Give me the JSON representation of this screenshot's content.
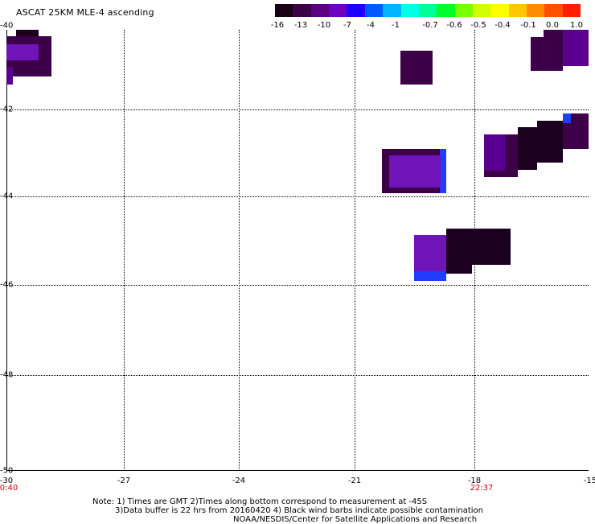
{
  "title": "ASCAT 25KM MLE-4 ascending",
  "colorbar": {
    "labels": [
      "-16",
      "-13",
      "-10",
      "-7",
      "-4",
      "-1",
      "-0.7",
      "-0.6",
      "-0.5",
      "-0.4",
      "-0.1",
      "0.0",
      "1.0"
    ],
    "colors": [
      "#1a0014",
      "#3c0046",
      "#5a0080",
      "#7000c0",
      "#1e00ff",
      "#005aff",
      "#00b4ff",
      "#00ffe6",
      "#00ff96",
      "#00ff2a",
      "#78ff00",
      "#d2ff00",
      "#ffff00",
      "#ffc800",
      "#ff8c00",
      "#ff5000",
      "#ff1e00"
    ]
  },
  "map": {
    "lon_labels": [
      "-30",
      "-27",
      "-24",
      "-21",
      "-18",
      "-15"
    ],
    "lat_labels": [
      "-40",
      "-42",
      "-44",
      "-46",
      "-48",
      "-50"
    ],
    "time_labels": {
      "left": "0:40",
      "right": "22:37"
    }
  },
  "colors": {
    "deep_purple": "#3d0048",
    "purple": "#5a0090",
    "violet": "#6e14b8",
    "blue": "#1f3cff",
    "dark": "#1b0020",
    "time_red": "#cc0000"
  },
  "notes": {
    "line1": "Note: 1) Times are GMT 2)Times along bottom correspond to measurement at -45S",
    "line2": "3)Data buffer is 22 hrs from 20160420 4) Black wind barbs indicate possible contamination",
    "line3": "NOAA/NESDIS/Center for Satellite Applications and Research"
  }
}
